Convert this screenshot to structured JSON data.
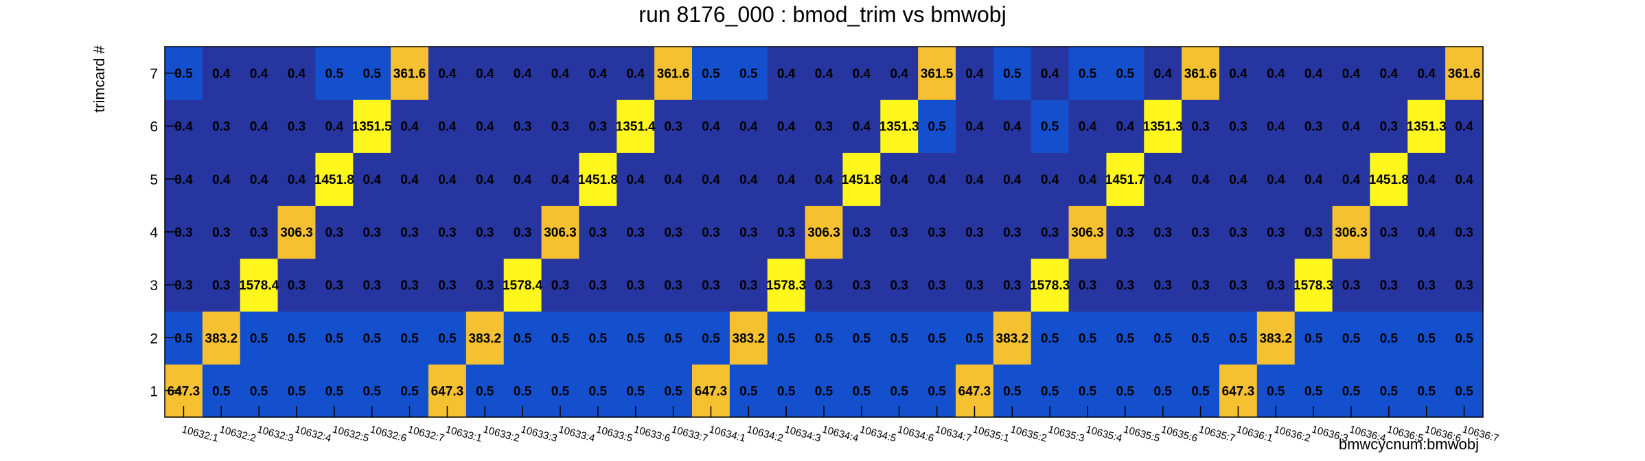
{
  "chart_data": {
    "type": "heatmap",
    "title": "run 8176_000 : bmod_trim vs bmwobj",
    "xlabel": "bmwcycnum:bmwobj",
    "ylabel": "trimcard #",
    "x_categories": [
      "10632:1",
      "10632:2",
      "10632:3",
      "10632:4",
      "10632:5",
      "10632:6",
      "10632:7",
      "10633:1",
      "10633:2",
      "10633:3",
      "10633:4",
      "10633:5",
      "10633:6",
      "10633:7",
      "10634:1",
      "10634:2",
      "10634:3",
      "10634:4",
      "10634:5",
      "10634:6",
      "10634:7",
      "10635:1",
      "10635:2",
      "10635:3",
      "10635:4",
      "10635:5",
      "10635:6",
      "10635:7",
      "10636:1",
      "10636:2",
      "10636:3",
      "10636:4",
      "10636:5",
      "10636:6",
      "10636:7"
    ],
    "y_categories": [
      "1",
      "2",
      "3",
      "4",
      "5",
      "6",
      "7"
    ],
    "values": [
      [
        "647.3",
        "0.5",
        "0.5",
        "0.5",
        "0.5",
        "0.5",
        "0.5",
        "647.3",
        "0.5",
        "0.5",
        "0.5",
        "0.5",
        "0.5",
        "0.5",
        "647.3",
        "0.5",
        "0.5",
        "0.5",
        "0.5",
        "0.5",
        "0.5",
        "647.3",
        "0.5",
        "0.5",
        "0.5",
        "0.5",
        "0.5",
        "0.5",
        "647.3",
        "0.5",
        "0.5",
        "0.5",
        "0.5",
        "0.5",
        "0.5"
      ],
      [
        "0.5",
        "383.2",
        "0.5",
        "0.5",
        "0.5",
        "0.5",
        "0.5",
        "0.5",
        "383.2",
        "0.5",
        "0.5",
        "0.5",
        "0.5",
        "0.5",
        "0.5",
        "383.2",
        "0.5",
        "0.5",
        "0.5",
        "0.5",
        "0.5",
        "0.5",
        "383.2",
        "0.5",
        "0.5",
        "0.5",
        "0.5",
        "0.5",
        "0.5",
        "383.2",
        "0.5",
        "0.5",
        "0.5",
        "0.5",
        "0.5"
      ],
      [
        "0.3",
        "0.3",
        "1578.4",
        "0.3",
        "0.3",
        "0.3",
        "0.3",
        "0.3",
        "0.3",
        "1578.4",
        "0.3",
        "0.3",
        "0.3",
        "0.3",
        "0.3",
        "0.3",
        "1578.3",
        "0.3",
        "0.3",
        "0.3",
        "0.3",
        "0.3",
        "0.3",
        "1578.3",
        "0.3",
        "0.3",
        "0.3",
        "0.3",
        "0.3",
        "0.3",
        "1578.3",
        "0.3",
        "0.3",
        "0.3",
        "0.3"
      ],
      [
        "0.3",
        "0.3",
        "0.3",
        "306.3",
        "0.3",
        "0.3",
        "0.3",
        "0.3",
        "0.3",
        "0.3",
        "306.3",
        "0.3",
        "0.3",
        "0.3",
        "0.3",
        "0.3",
        "0.3",
        "306.3",
        "0.3",
        "0.3",
        "0.3",
        "0.3",
        "0.3",
        "0.3",
        "306.3",
        "0.3",
        "0.3",
        "0.3",
        "0.3",
        "0.3",
        "0.3",
        "306.3",
        "0.3",
        "0.4",
        "0.3"
      ],
      [
        "0.4",
        "0.4",
        "0.4",
        "0.4",
        "1451.8",
        "0.4",
        "0.4",
        "0.4",
        "0.4",
        "0.4",
        "0.4",
        "1451.8",
        "0.4",
        "0.4",
        "0.4",
        "0.4",
        "0.4",
        "0.4",
        "1451.8",
        "0.4",
        "0.4",
        "0.4",
        "0.4",
        "0.4",
        "0.4",
        "1451.7",
        "0.4",
        "0.4",
        "0.4",
        "0.4",
        "0.4",
        "0.4",
        "1451.8",
        "0.4",
        "0.4"
      ],
      [
        "0.4",
        "0.3",
        "0.4",
        "0.3",
        "0.4",
        "1351.5",
        "0.4",
        "0.4",
        "0.4",
        "0.3",
        "0.3",
        "0.3",
        "1351.4",
        "0.3",
        "0.4",
        "0.4",
        "0.4",
        "0.3",
        "0.4",
        "1351.3",
        "0.5",
        "0.4",
        "0.4",
        "0.5",
        "0.4",
        "0.4",
        "1351.3",
        "0.3",
        "0.3",
        "0.4",
        "0.3",
        "0.4",
        "0.3",
        "1351.3",
        "0.4"
      ],
      [
        "0.5",
        "0.4",
        "0.4",
        "0.4",
        "0.5",
        "0.5",
        "361.6",
        "0.4",
        "0.4",
        "0.4",
        "0.4",
        "0.4",
        "0.4",
        "361.6",
        "0.5",
        "0.5",
        "0.4",
        "0.4",
        "0.4",
        "0.4",
        "361.5",
        "0.4",
        "0.5",
        "0.4",
        "0.5",
        "0.5",
        "0.4",
        "361.6",
        "0.4",
        "0.4",
        "0.4",
        "0.4",
        "0.4",
        "0.4",
        "361.6"
      ]
    ],
    "colors": {
      "high": "#FFF61E",
      "mid": "#F5C131",
      "low_light": "#1450CE",
      "low_dark": "#2735A0"
    }
  }
}
